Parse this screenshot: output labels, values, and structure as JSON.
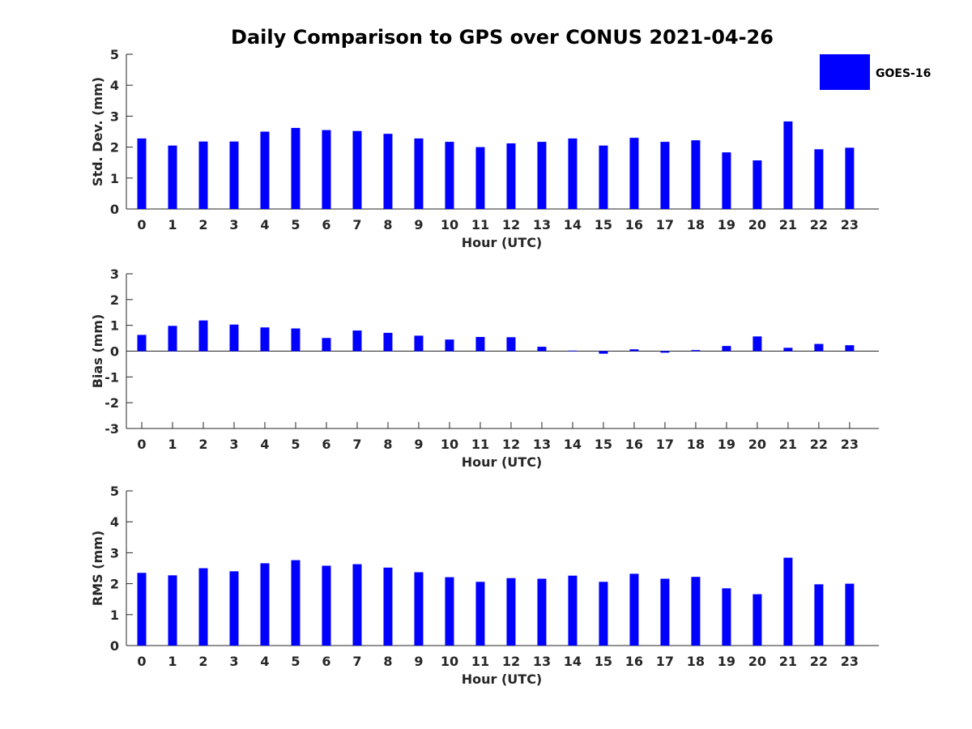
{
  "chart_data": {
    "title": "Daily Comparison to GPS over CONUS 2021-04-26",
    "legend": {
      "position": "top-right",
      "entries": [
        "GOES-16"
      ]
    },
    "color": "#0000ff",
    "panels": [
      {
        "type": "bar",
        "xlabel": "Hour (UTC)",
        "ylabel": "Std. Dev. (mm)",
        "ylim": [
          0,
          5
        ],
        "yticks": [
          "0",
          "1",
          "2",
          "3",
          "4",
          "5"
        ],
        "categories": [
          "0",
          "1",
          "2",
          "3",
          "4",
          "5",
          "6",
          "7",
          "8",
          "9",
          "10",
          "11",
          "12",
          "13",
          "14",
          "15",
          "16",
          "17",
          "18",
          "19",
          "20",
          "21",
          "22",
          "23"
        ],
        "series": [
          {
            "name": "GOES-16",
            "values": [
              2.28,
              2.05,
              2.18,
              2.18,
              2.5,
              2.62,
              2.55,
              2.52,
              2.43,
              2.28,
              2.17,
              2.0,
              2.12,
              2.17,
              2.28,
              2.05,
              2.3,
              2.17,
              2.22,
              1.83,
              1.57,
              2.83,
              1.93,
              1.98
            ]
          }
        ]
      },
      {
        "type": "bar",
        "xlabel": "Hour (UTC)",
        "ylabel": "Bias (mm)",
        "ylim": [
          -3,
          3
        ],
        "yticks": [
          "-3",
          "-2",
          "-1",
          "0",
          "1",
          "2",
          "3"
        ],
        "categories": [
          "0",
          "1",
          "2",
          "3",
          "4",
          "5",
          "6",
          "7",
          "8",
          "9",
          "10",
          "11",
          "12",
          "13",
          "14",
          "15",
          "16",
          "17",
          "18",
          "19",
          "20",
          "21",
          "22",
          "23"
        ],
        "series": [
          {
            "name": "GOES-16",
            "values": [
              0.63,
              0.98,
              1.19,
              1.03,
              0.92,
              0.88,
              0.51,
              0.8,
              0.71,
              0.6,
              0.45,
              0.55,
              0.54,
              0.17,
              0.02,
              -0.1,
              0.07,
              -0.06,
              0.04,
              0.2,
              0.57,
              0.13,
              0.28,
              0.23
            ]
          }
        ]
      },
      {
        "type": "bar",
        "xlabel": "Hour (UTC)",
        "ylabel": "RMS (mm)",
        "ylim": [
          0,
          5
        ],
        "yticks": [
          "0",
          "1",
          "2",
          "3",
          "4",
          "5"
        ],
        "categories": [
          "0",
          "1",
          "2",
          "3",
          "4",
          "5",
          "6",
          "7",
          "8",
          "9",
          "10",
          "11",
          "12",
          "13",
          "14",
          "15",
          "16",
          "17",
          "18",
          "19",
          "20",
          "21",
          "22",
          "23"
        ],
        "series": [
          {
            "name": "GOES-16",
            "values": [
              2.35,
              2.27,
              2.5,
              2.4,
              2.66,
              2.76,
              2.58,
              2.63,
              2.52,
              2.37,
              2.21,
              2.06,
              2.18,
              2.16,
              2.26,
              2.06,
              2.32,
              2.16,
              2.22,
              1.85,
              1.66,
              2.84,
              1.98,
              2.0
            ]
          }
        ]
      }
    ]
  }
}
